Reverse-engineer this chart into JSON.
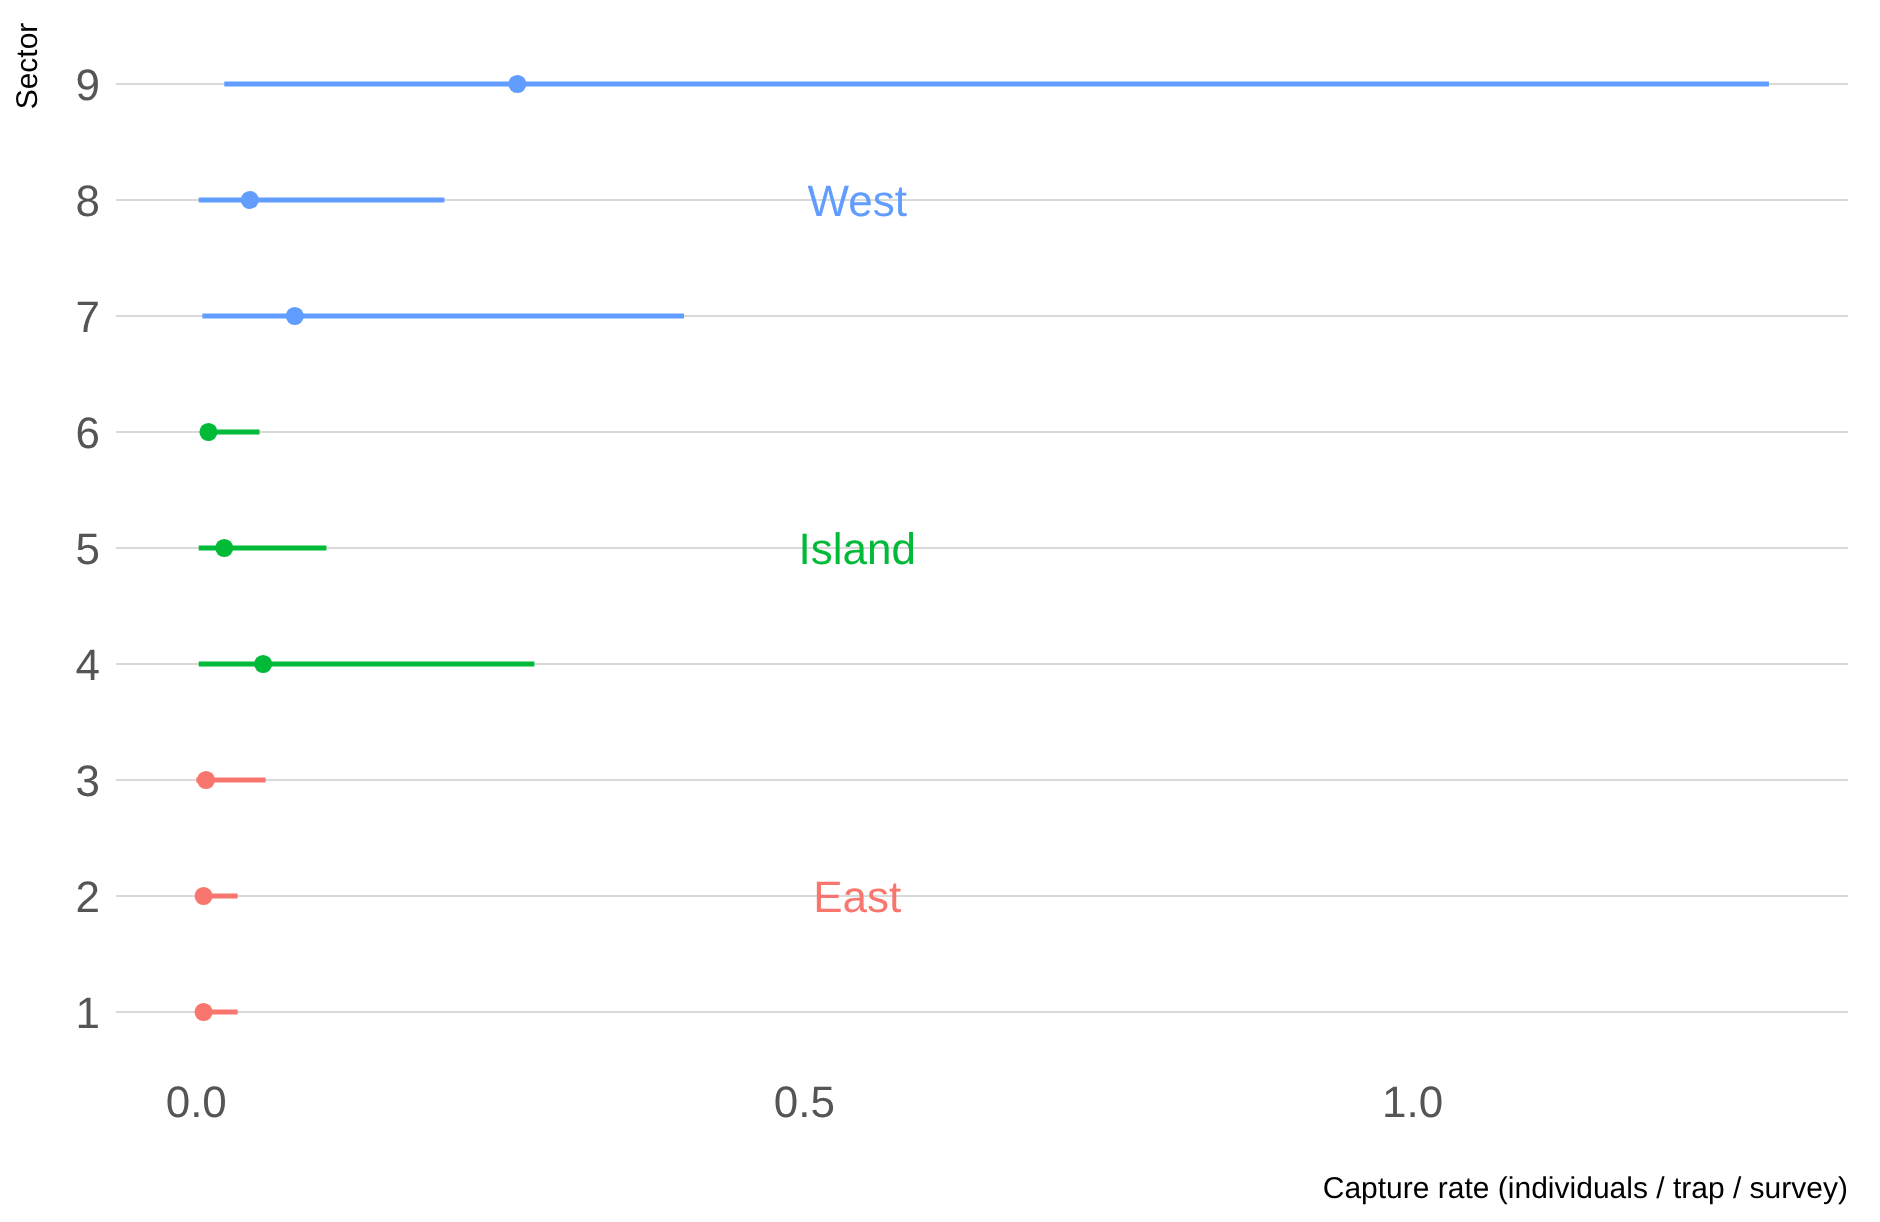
{
  "chart_data": {
    "type": "scatter",
    "orientation": "horizontal",
    "ylabel": "Sector",
    "xlabel": "Capture rate (individuals / trap / survey)",
    "categories": [
      "9",
      "8",
      "7",
      "6",
      "5",
      "4",
      "3",
      "2",
      "1"
    ],
    "series": [
      {
        "name": "East",
        "color": "#f8766d",
        "values": [
          null,
          null,
          null,
          null,
          null,
          null,
          0.008,
          0.006,
          0.006
        ],
        "errors": [
          null,
          null,
          null,
          null,
          null,
          null,
          [
            0,
            0.057
          ],
          [
            0,
            0.034
          ],
          [
            0,
            0.034
          ]
        ]
      },
      {
        "name": "Island",
        "color": "#00ba38",
        "values": [
          null,
          null,
          null,
          0.01,
          0.023,
          0.055,
          null,
          null,
          null
        ],
        "errors": [
          null,
          null,
          null,
          [
            0.003,
            0.052
          ],
          [
            0.002,
            0.107
          ],
          [
            0.002,
            0.278
          ],
          null,
          null,
          null
        ]
      },
      {
        "name": "West",
        "color": "#619cff",
        "values": [
          0.264,
          0.044,
          0.081,
          null,
          null,
          null,
          null,
          null,
          null
        ],
        "errors": [
          [
            0.023,
            1.293
          ],
          [
            0.002,
            0.204
          ],
          [
            0.005,
            0.401
          ],
          null,
          null,
          null,
          null,
          null,
          null
        ]
      }
    ],
    "xlim": [
      -0.066,
      1.358
    ],
    "xticks": [
      {
        "value": 0,
        "label": "0.0"
      },
      0.5,
      {
        "value": 1,
        "label": "1.0"
      }
    ],
    "grid": "y",
    "marker": "circle",
    "legend": false
  }
}
